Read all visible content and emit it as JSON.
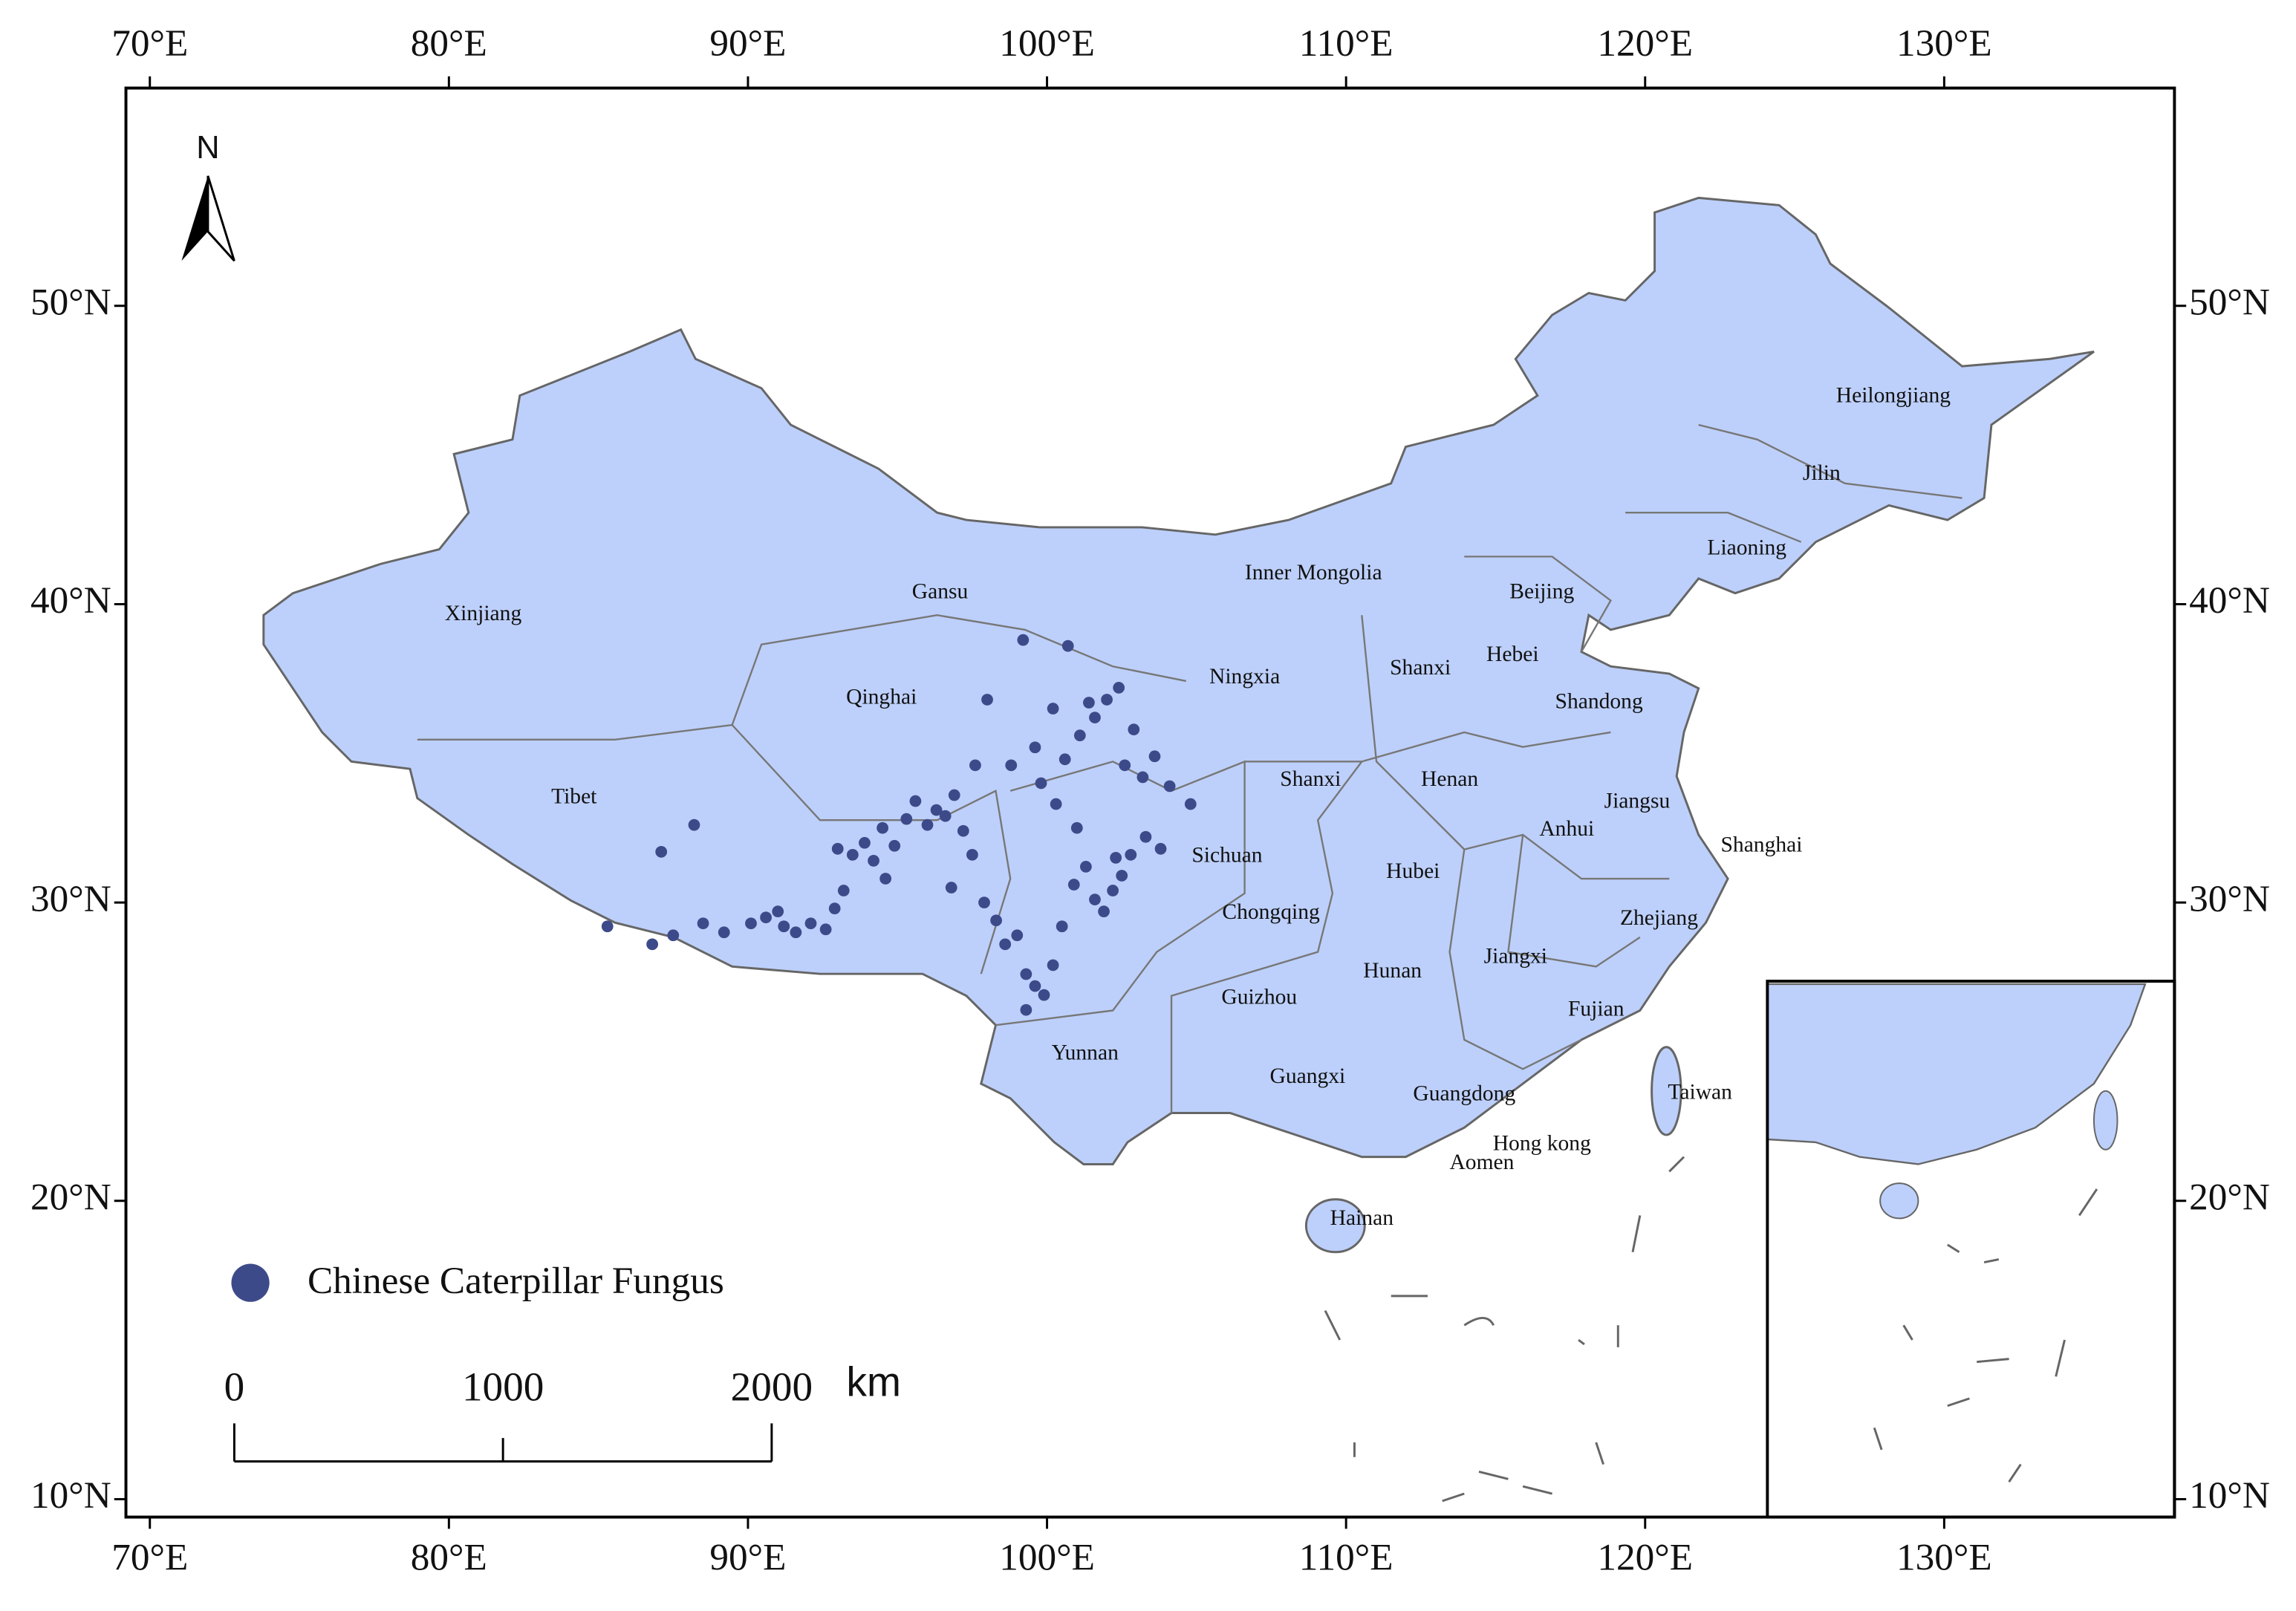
{
  "map": {
    "xlim": [
      69.2,
      137.7
    ],
    "ylim": [
      9.4,
      57.3
    ],
    "xticks": [
      {
        "value": 70,
        "label": "70°E"
      },
      {
        "value": 80,
        "label": "80°E"
      },
      {
        "value": 90,
        "label": "90°E"
      },
      {
        "value": 100,
        "label": "100°E"
      },
      {
        "value": 110,
        "label": "110°E"
      },
      {
        "value": 120,
        "label": "120°E"
      },
      {
        "value": 130,
        "label": "130°E"
      }
    ],
    "yticks": [
      {
        "value": 10,
        "label": "10°N"
      },
      {
        "value": 20,
        "label": "20°N"
      },
      {
        "value": 30,
        "label": "30°N"
      },
      {
        "value": 40,
        "label": "40°N"
      },
      {
        "value": 50,
        "label": "50°N"
      }
    ],
    "north": "N",
    "regions": [
      "Xinjiang",
      "Gansu",
      "Inner Mongolia",
      "Heilongjiang",
      "Jilin",
      "Liaoning",
      "Beijing",
      "Ningxia",
      "Shanxi",
      "Hebei",
      "Shandong",
      "Qinghai",
      "Tibet",
      "Shanxi",
      "Henan",
      "Jiangsu",
      "Anhui",
      "Shanghai",
      "Sichuan",
      "Hubei",
      "Chongqing",
      "Zhejiang",
      "Jiangxi",
      "Hunan",
      "Guizhou",
      "Fujian",
      "Yunnan",
      "Guangxi",
      "Guangdong",
      "Taiwan",
      "Hong kong",
      "Aomen",
      "Hainan"
    ],
    "legend": "Chinese Caterpillar Fungus",
    "points": {
      "lon": [
        85.3,
        87.1,
        88.2,
        86.8,
        87.5,
        88.5,
        89.2,
        90.1,
        90.6,
        91.0,
        91.2,
        91.6,
        92.1,
        92.6,
        92.9,
        93.2,
        93.0,
        93.5,
        93.9,
        94.2,
        94.6,
        94.9,
        95.3,
        95.6,
        96.0,
        96.3,
        96.6,
        96.9,
        97.2,
        97.5,
        96.8,
        97.9,
        98.3,
        98.6,
        99.0,
        99.3,
        99.6,
        99.9,
        99.3,
        100.2,
        100.5,
        100.9,
        101.3,
        101.6,
        101.9,
        102.2,
        102.5,
        102.8,
        103.3,
        103.8,
        102.3,
        101.0,
        100.3,
        99.8,
        100.6,
        101.1,
        101.6,
        102.0,
        102.4,
        101.4,
        100.2,
        99.6,
        98.8,
        99.2,
        100.7,
        102.6,
        103.2,
        104.1,
        104.8,
        103.6,
        102.9,
        98.0,
        97.6,
        94.5
      ],
      "lat": [
        29.2,
        31.7,
        32.6,
        28.6,
        28.9,
        29.3,
        29.0,
        29.3,
        29.5,
        29.7,
        29.2,
        29.0,
        29.3,
        29.1,
        29.8,
        30.4,
        31.8,
        31.6,
        32.0,
        31.4,
        30.8,
        31.9,
        32.8,
        33.4,
        32.6,
        33.1,
        32.9,
        33.6,
        32.4,
        31.6,
        30.5,
        30.0,
        29.4,
        28.6,
        28.9,
        27.6,
        27.2,
        26.9,
        26.4,
        27.9,
        29.2,
        30.6,
        31.2,
        30.1,
        29.7,
        30.4,
        30.9,
        31.6,
        32.2,
        31.8,
        31.5,
        32.5,
        33.3,
        34.0,
        34.8,
        35.6,
        36.2,
        36.8,
        37.2,
        36.7,
        36.5,
        35.2,
        34.6,
        38.8,
        38.6,
        34.6,
        34.2,
        33.9,
        33.3,
        34.9,
        35.8,
        36.8,
        34.6,
        32.5
      ]
    },
    "scale_bar": {
      "ticks": [
        0,
        1000,
        2000
      ],
      "unit": "km"
    }
  }
}
